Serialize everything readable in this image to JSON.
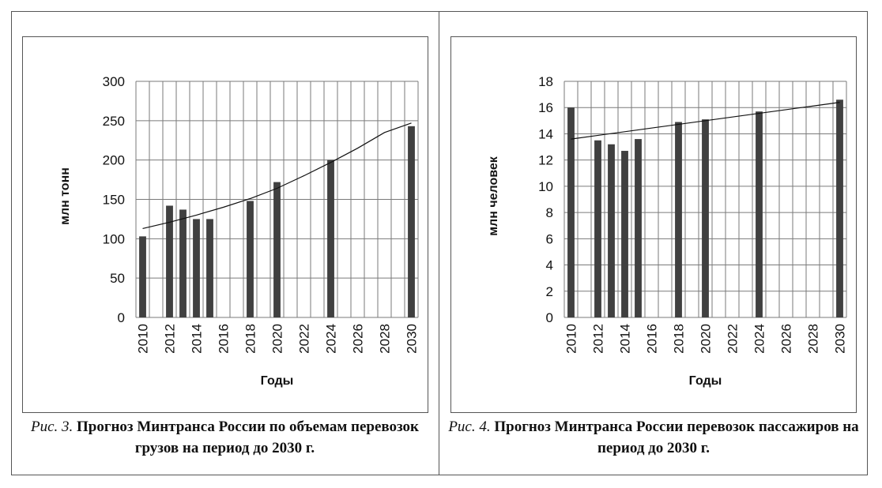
{
  "charts": [
    {
      "caption": {
        "lead": "Рис. 3.",
        "text": "Прогноз Минтранса России по объемам перевозок грузов на период до 2030 г."
      },
      "chart_data": {
        "type": "bar",
        "title": "",
        "xlabel": "Годы",
        "ylabel": "млн тонн",
        "x_ticks": [
          "2010",
          "2012",
          "2014",
          "2016",
          "2018",
          "2020",
          "2022",
          "2024",
          "2026",
          "2028",
          "2030"
        ],
        "y_ticks": [
          "0",
          "50",
          "100",
          "150",
          "200",
          "250",
          "300"
        ],
        "ylim": [
          0,
          300
        ],
        "xlim": [
          2010,
          2030
        ],
        "grid": "vertical and horizontal",
        "bar_color": "#404040",
        "series": [
          {
            "x": [
              2010,
              2012,
              2013,
              2014,
              2015,
              2018,
              2020,
              2024,
              2030
            ],
            "values": [
              103,
              142,
              137,
              125,
              125,
              148,
              172,
              200,
              243
            ]
          }
        ],
        "trendline": {
          "kind": "curve",
          "x": [
            2010,
            2012,
            2014,
            2016,
            2018,
            2020,
            2022,
            2024,
            2026,
            2028,
            2030
          ],
          "values": [
            113,
            121,
            130,
            140,
            151,
            164,
            180,
            197,
            215,
            235,
            247
          ]
        }
      }
    },
    {
      "caption": {
        "lead": "Рис. 4.",
        "text": "Прогноз Минтранса России перевозок пассажиров на период до 2030 г."
      },
      "chart_data": {
        "type": "bar",
        "title": "",
        "xlabel": "Годы",
        "ylabel": "млн человек",
        "x_ticks": [
          "2010",
          "2012",
          "2014",
          "2016",
          "2018",
          "2020",
          "2022",
          "2024",
          "2026",
          "2028",
          "2030"
        ],
        "y_ticks": [
          "0",
          "2",
          "4",
          "6",
          "8",
          "10",
          "12",
          "14",
          "16",
          "18"
        ],
        "ylim": [
          0,
          18
        ],
        "xlim": [
          2010,
          2030
        ],
        "grid": "vertical and horizontal",
        "bar_color": "#404040",
        "series": [
          {
            "x": [
              2010,
              2012,
              2013,
              2014,
              2015,
              2018,
              2020,
              2024,
              2030
            ],
            "values": [
              16.0,
              13.5,
              13.2,
              12.7,
              13.6,
              14.9,
              15.1,
              15.7,
              16.6
            ]
          }
        ],
        "trendline": {
          "kind": "line",
          "x": [
            2010,
            2030
          ],
          "values": [
            13.6,
            16.4
          ]
        }
      }
    }
  ]
}
